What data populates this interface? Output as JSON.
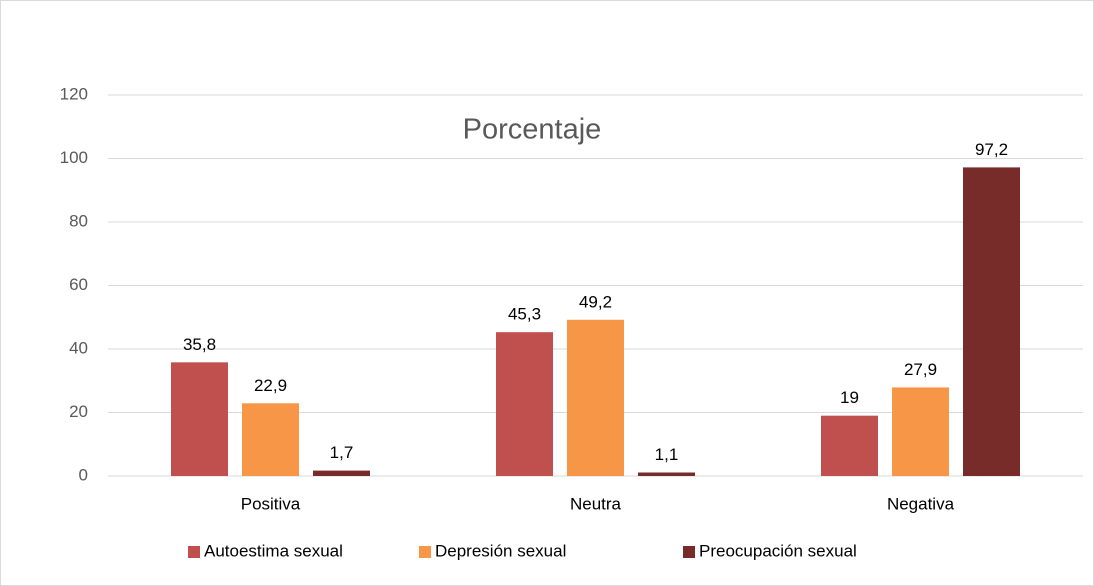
{
  "chart_data": {
    "type": "bar",
    "title": "Porcentaje",
    "categories": [
      "Positiva",
      "Neutra",
      "Negativa"
    ],
    "series": [
      {
        "name": "Autoestima sexual",
        "color": "#c0504d",
        "values": [
          35.8,
          45.3,
          19
        ],
        "value_labels": [
          "35,8",
          "45,3",
          "19"
        ]
      },
      {
        "name": "Depresión sexual",
        "color": "#f79646",
        "values": [
          22.9,
          49.2,
          27.9
        ],
        "value_labels": [
          "22,9",
          "49,2",
          "27,9"
        ]
      },
      {
        "name": "Preocupación sexual",
        "color": "#772c2a",
        "values": [
          1.7,
          1.1,
          97.2
        ],
        "value_labels": [
          "1,7",
          "1,1",
          "97,2"
        ]
      }
    ],
    "ylim": [
      0,
      120
    ],
    "yticks": [
      0,
      20,
      40,
      60,
      80,
      100,
      120
    ],
    "grid": true,
    "legend": "bottom"
  }
}
